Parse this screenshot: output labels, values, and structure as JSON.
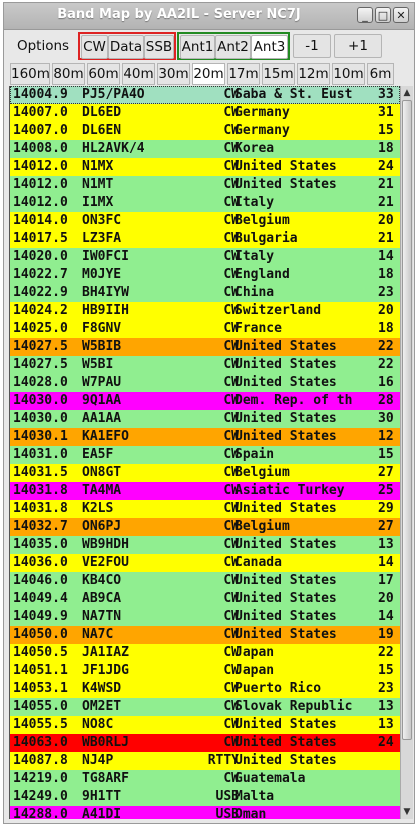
{
  "window": {
    "title": "Band Map by AA2IL - Server NC7J",
    "minimize": "_",
    "maximize": "□",
    "close": "✕"
  },
  "toolbar": {
    "options": "Options",
    "modes": [
      "CW",
      "Data",
      "SSB"
    ],
    "antennas": [
      "Ant1",
      "Ant2",
      "Ant3"
    ],
    "active_antenna": "Ant3",
    "minus": "-1",
    "plus": "+1"
  },
  "bands": [
    "160m",
    "80m",
    "60m",
    "40m",
    "30m",
    "20m",
    "17m",
    "15m",
    "12m",
    "10m",
    "6m"
  ],
  "active_band": "20m",
  "colors": {
    "yellow": "#ffff00",
    "green": "#90ee90",
    "orange": "#ffa500",
    "magenta": "#ff00ff",
    "red": "#ff0000",
    "teal": "#a0e0c0"
  },
  "spots": [
    {
      "freq": "14004.9",
      "call": "PJ5/PA4O",
      "mode": "CW",
      "country": "Saba & St. Eust",
      "num": "33",
      "color": "teal"
    },
    {
      "freq": "14007.0",
      "call": "DL6ED",
      "mode": "CW",
      "country": "Germany",
      "num": "31",
      "color": "yellow"
    },
    {
      "freq": "14007.0",
      "call": "DL6EN",
      "mode": "CW",
      "country": "Germany",
      "num": "15",
      "color": "yellow"
    },
    {
      "freq": "14008.0",
      "call": "HL2AVK/4",
      "mode": "CW",
      "country": "Korea",
      "num": "18",
      "color": "green"
    },
    {
      "freq": "14012.0",
      "call": "N1MX",
      "mode": "CW",
      "country": "United States",
      "num": "24",
      "color": "yellow"
    },
    {
      "freq": "14012.0",
      "call": "N1MT",
      "mode": "CW",
      "country": "United States",
      "num": "21",
      "color": "green"
    },
    {
      "freq": "14012.0",
      "call": "I1MX",
      "mode": "CW",
      "country": "Italy",
      "num": "21",
      "color": "green"
    },
    {
      "freq": "14014.0",
      "call": "ON3FC",
      "mode": "CW",
      "country": "Belgium",
      "num": "20",
      "color": "yellow"
    },
    {
      "freq": "14017.5",
      "call": "LZ3FA",
      "mode": "CW",
      "country": "Bulgaria",
      "num": "21",
      "color": "yellow"
    },
    {
      "freq": "14020.0",
      "call": "IW0FCI",
      "mode": "CW",
      "country": "Italy",
      "num": "14",
      "color": "green"
    },
    {
      "freq": "14022.7",
      "call": "M0JYE",
      "mode": "CW",
      "country": "England",
      "num": "18",
      "color": "green"
    },
    {
      "freq": "14022.9",
      "call": "BH4IYW",
      "mode": "CW",
      "country": "China",
      "num": "23",
      "color": "green"
    },
    {
      "freq": "14024.2",
      "call": "HB9IIH",
      "mode": "CW",
      "country": "Switzerland",
      "num": "20",
      "color": "yellow"
    },
    {
      "freq": "14025.0",
      "call": "F8GNV",
      "mode": "CW",
      "country": "France",
      "num": "18",
      "color": "yellow"
    },
    {
      "freq": "14027.5",
      "call": "W5BIB",
      "mode": "CW",
      "country": "United States",
      "num": "22",
      "color": "orange"
    },
    {
      "freq": "14027.5",
      "call": "W5BI",
      "mode": "CW",
      "country": "United States",
      "num": "22",
      "color": "green"
    },
    {
      "freq": "14028.0",
      "call": "W7PAU",
      "mode": "CW",
      "country": "United States",
      "num": "16",
      "color": "green"
    },
    {
      "freq": "14030.0",
      "call": "9Q1AA",
      "mode": "CW",
      "country": "Dem. Rep. of th",
      "num": "28",
      "color": "magenta"
    },
    {
      "freq": "14030.0",
      "call": "AA1AA",
      "mode": "CW",
      "country": "United States",
      "num": "30",
      "color": "green"
    },
    {
      "freq": "14030.1",
      "call": "KA1EFO",
      "mode": "CW",
      "country": "United States",
      "num": "12",
      "color": "orange"
    },
    {
      "freq": "14031.0",
      "call": "EA5F",
      "mode": "CW",
      "country": "Spain",
      "num": "15",
      "color": "green"
    },
    {
      "freq": "14031.5",
      "call": "ON8GT",
      "mode": "CW",
      "country": "Belgium",
      "num": "27",
      "color": "yellow"
    },
    {
      "freq": "14031.8",
      "call": "TA4MA",
      "mode": "CW",
      "country": "Asiatic Turkey",
      "num": "25",
      "color": "magenta"
    },
    {
      "freq": "14031.8",
      "call": "K2LS",
      "mode": "CW",
      "country": "United States",
      "num": "29",
      "color": "yellow"
    },
    {
      "freq": "14032.7",
      "call": "ON6PJ",
      "mode": "CW",
      "country": "Belgium",
      "num": "27",
      "color": "orange"
    },
    {
      "freq": "14035.0",
      "call": "WB9HDH",
      "mode": "CW",
      "country": "United States",
      "num": "13",
      "color": "green"
    },
    {
      "freq": "14036.0",
      "call": "VE2FOU",
      "mode": "CW",
      "country": "Canada",
      "num": "14",
      "color": "yellow"
    },
    {
      "freq": "14046.0",
      "call": "KB4CO",
      "mode": "CW",
      "country": "United States",
      "num": "17",
      "color": "green"
    },
    {
      "freq": "14049.4",
      "call": "AB9CA",
      "mode": "CW",
      "country": "United States",
      "num": "20",
      "color": "green"
    },
    {
      "freq": "14049.9",
      "call": "NA7TN",
      "mode": "CW",
      "country": "United States",
      "num": "14",
      "color": "green"
    },
    {
      "freq": "14050.0",
      "call": "NA7C",
      "mode": "CW",
      "country": "United States",
      "num": "19",
      "color": "orange"
    },
    {
      "freq": "14050.5",
      "call": "JA1IAZ",
      "mode": "CW",
      "country": "Japan",
      "num": "22",
      "color": "yellow"
    },
    {
      "freq": "14051.1",
      "call": "JF1JDG",
      "mode": "CW",
      "country": "Japan",
      "num": "15",
      "color": "yellow"
    },
    {
      "freq": "14053.1",
      "call": "K4WSD",
      "mode": "CW",
      "country": "Puerto Rico",
      "num": "23",
      "color": "yellow"
    },
    {
      "freq": "14055.0",
      "call": "OM2ET",
      "mode": "CW",
      "country": "Slovak Republic",
      "num": "13",
      "color": "green"
    },
    {
      "freq": "14055.5",
      "call": "NO8C",
      "mode": "CW",
      "country": "United States",
      "num": "13",
      "color": "yellow"
    },
    {
      "freq": "14063.0",
      "call": "WB0RLJ",
      "mode": "CW",
      "country": "United States",
      "num": "24",
      "color": "red"
    },
    {
      "freq": "14087.8",
      "call": "NJ4P",
      "mode": "RTTY",
      "country": "United States",
      "num": "",
      "color": "yellow"
    },
    {
      "freq": "14219.0",
      "call": "TG8ARF",
      "mode": "CW",
      "country": "Guatemala",
      "num": "",
      "color": "green"
    },
    {
      "freq": "14249.0",
      "call": "9H1TT",
      "mode": "USB",
      "country": "Malta",
      "num": "",
      "color": "green"
    },
    {
      "freq": "14288.0",
      "call": "A41DI",
      "mode": "USB",
      "country": "Oman",
      "num": "",
      "color": "magenta"
    }
  ]
}
